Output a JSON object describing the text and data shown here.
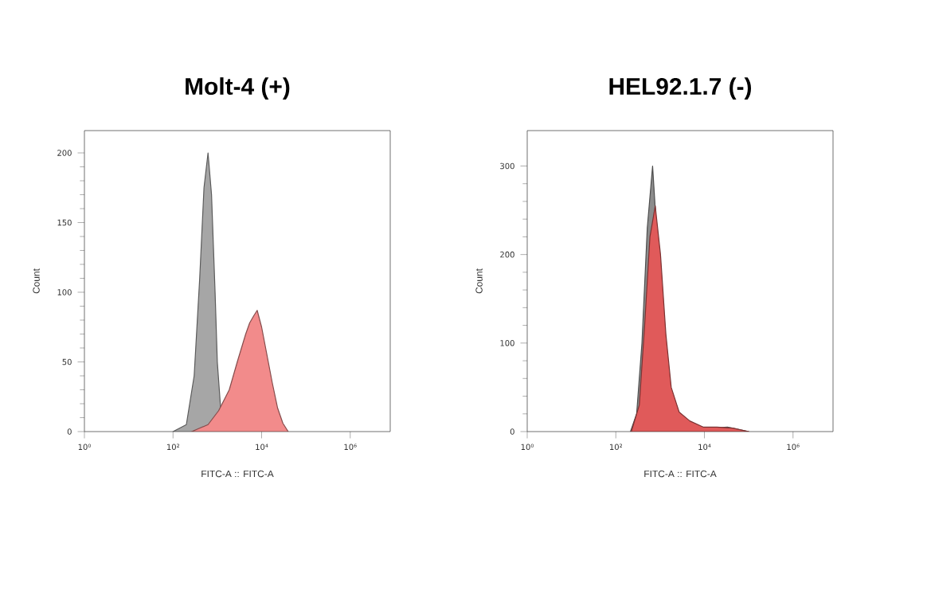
{
  "chart_data": [
    {
      "type": "area",
      "title": "Molt-4 (+)",
      "xlabel": "FITC-A :: FITC-A",
      "ylabel": "Count",
      "log": "x",
      "xlim": [
        1,
        8000000
      ],
      "ylim": [
        0,
        216
      ],
      "xticks": [
        {
          "value": 1,
          "label": "10⁰"
        },
        {
          "value": 100,
          "label": "10²"
        },
        {
          "value": 10000,
          "label": "10⁴"
        },
        {
          "value": 1000000,
          "label": "10⁶"
        }
      ],
      "yticks": [
        0,
        50,
        100,
        150,
        200
      ],
      "series": [
        {
          "color": "#a6a6a6",
          "x": [
            100,
            200,
            300,
            400,
            500,
            617,
            740,
            890,
            1000,
            1230,
            1580
          ],
          "values": [
            0,
            5,
            40,
            110,
            175,
            200,
            170,
            100,
            50,
            10,
            0
          ]
        },
        {
          "color": "#f28b8b",
          "x": [
            263,
            617,
            1070,
            1860,
            2820,
            4370,
            5370,
            6610,
            7940,
            10000,
            13200,
            17400,
            22900,
            30200,
            39800
          ],
          "values": [
            0,
            5,
            15,
            30,
            50,
            70,
            78,
            83,
            87,
            75,
            55,
            35,
            17,
            6,
            0
          ]
        }
      ]
    },
    {
      "type": "area",
      "title": "HEL92.1.7 (-)",
      "xlabel": "FITC-A :: FITC-A",
      "ylabel": "Count",
      "log": "x",
      "xlim": [
        1,
        8000000
      ],
      "ylim": [
        0,
        340
      ],
      "xticks": [
        {
          "value": 1,
          "label": "10⁰"
        },
        {
          "value": 100,
          "label": "10²"
        },
        {
          "value": 10000,
          "label": "10⁴"
        },
        {
          "value": 1000000,
          "label": "10⁶"
        }
      ],
      "yticks": [
        0,
        100,
        200,
        300
      ],
      "series": [
        {
          "color": "#8c8c8c",
          "x": [
            214,
            295,
            389,
            513,
            676,
            851,
            1120,
            1550,
            2340,
            4070,
            8320,
            33100,
            100000
          ],
          "values": [
            0,
            20,
            100,
            230,
            300,
            220,
            100,
            40,
            20,
            10,
            3,
            5,
            0
          ]
        },
        {
          "color": "#e05a5a",
          "x": [
            224,
            339,
            447,
            589,
            776,
            1020,
            1350,
            1780,
            2690,
            4680,
            9550,
            19100,
            43700,
            100000
          ],
          "values": [
            0,
            30,
            120,
            220,
            255,
            200,
            110,
            50,
            22,
            12,
            5,
            5,
            4,
            0
          ]
        }
      ]
    }
  ]
}
